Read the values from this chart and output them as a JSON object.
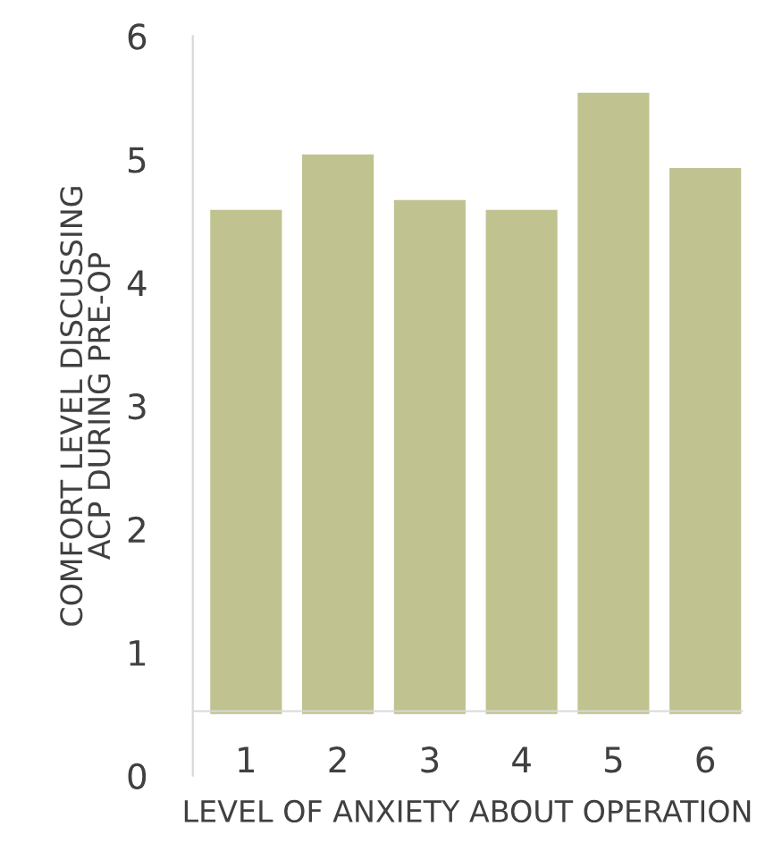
{
  "chart_data": {
    "type": "bar",
    "xlabel": "LEVEL OF ANXIETY ABOUT OPERATION",
    "ylabel": "COMFORT LEVEL DISCUSSING\nACP DURING PRE-OP",
    "categories": [
      "1",
      "2",
      "3",
      "4",
      "5",
      "6"
    ],
    "base": [
      0.5,
      0.5,
      0.5,
      0.5,
      0.5,
      0.5
    ],
    "values": [
      4.09,
      4.54,
      4.17,
      4.09,
      5.04,
      4.43
    ],
    "color": "#c0c390",
    "ylim": [
      0,
      6
    ],
    "yticks": [
      0,
      1,
      2,
      3,
      4,
      5,
      6
    ],
    "grid": false,
    "legend": false
  }
}
